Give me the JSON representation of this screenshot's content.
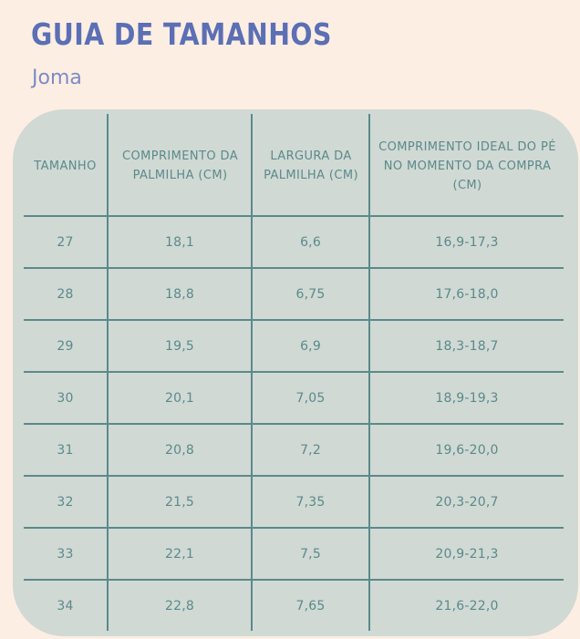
{
  "title": "GUIA DE TAMANHOS",
  "brand": "Joma",
  "table": {
    "headers": [
      "TAMANHO",
      "COMPRIMENTO DA PALMILHA (CM)",
      "LARGURA DA PALMILHA (CM)",
      "COMPRIMENTO IDEAL DO PÉ NO MOMENTO DA COMPRA (CM)"
    ],
    "rows": [
      [
        "27",
        "18,1",
        "6,6",
        "16,9-17,3"
      ],
      [
        "28",
        "18,8",
        "6,75",
        "17,6-18,0"
      ],
      [
        "29",
        "19,5",
        "6,9",
        "18,3-18,7"
      ],
      [
        "30",
        "20,1",
        "7,05",
        "18,9-19,3"
      ],
      [
        "31",
        "20,8",
        "7,2",
        "19,6-20,0"
      ],
      [
        "32",
        "21,5",
        "7,35",
        "20,3-20,7"
      ],
      [
        "33",
        "22,1",
        "7,5",
        "20,9-21,3"
      ],
      [
        "34",
        "22,8",
        "7,65",
        "21,6-22,0"
      ]
    ]
  },
  "colors": {
    "background": "#fdeee3",
    "title": "#5b6fb5",
    "card": "#d0d9d4",
    "table_text": "#5b8a8a"
  }
}
